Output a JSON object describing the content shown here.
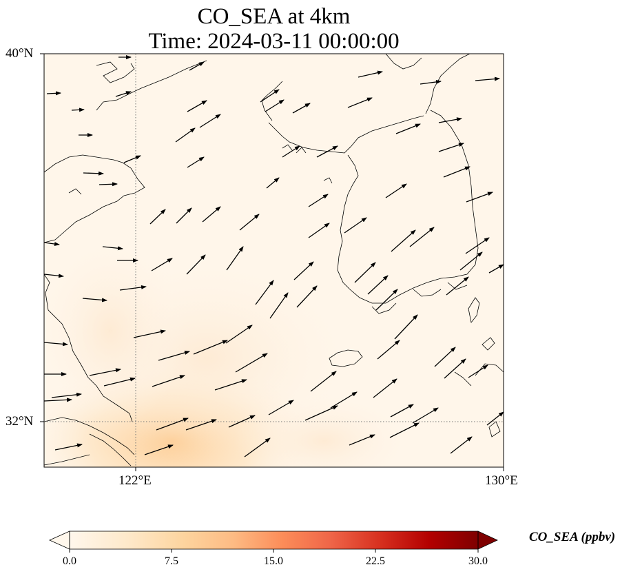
{
  "map": {
    "title_line1": "CO_SEA at 4km",
    "title_line2": "Time: 2024-03-11 00:00:00",
    "lat_labels": [
      "40°N",
      "32°N"
    ],
    "lon_labels": [
      "122°E",
      "130°E"
    ],
    "extent": {
      "lon_min": 120,
      "lon_max": 130,
      "lat_min": 31,
      "lat_max": 40
    },
    "gridlines": {
      "lon": [
        122
      ],
      "lat": [
        32
      ],
      "style": "dotted"
    },
    "field": "CO_SEA",
    "vectors": "wind arrows, predominantly from the west-southwest"
  },
  "colorbar": {
    "title": "CO_SEA (ppbv)",
    "ticks": [
      "0.0",
      "7.5",
      "15.0",
      "22.5",
      "30.0"
    ],
    "range": [
      0,
      30
    ],
    "colormap": "OrRd",
    "extend": "both",
    "colors": [
      "#fff7ec",
      "#fee8c8",
      "#fdd49e",
      "#fdbb84",
      "#fc8d59",
      "#ef6548",
      "#d7301f",
      "#b30000",
      "#7f0000"
    ]
  }
}
